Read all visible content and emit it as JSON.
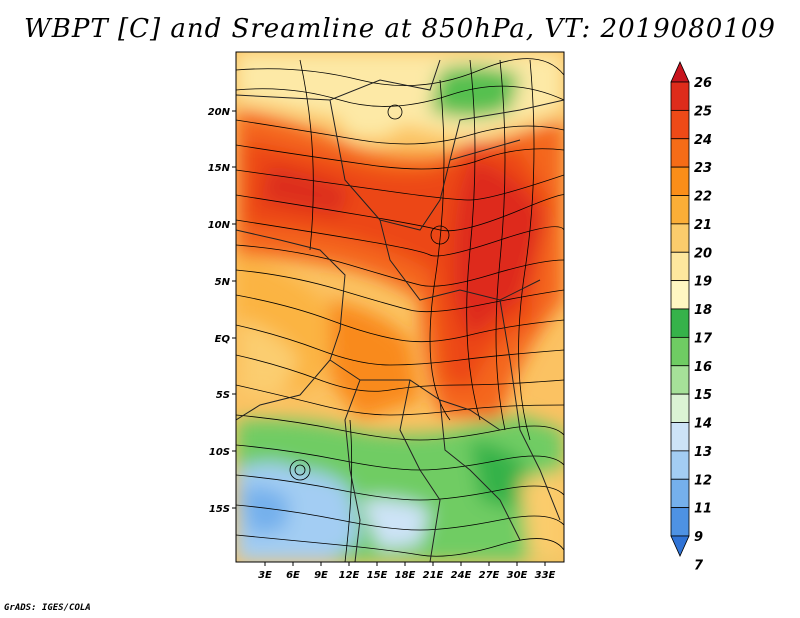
{
  "title": "WBPT [C] and Sreamline at 850hPa, VT: 2019080109",
  "credit": "GrADS: IGES/COLA",
  "map": {
    "variable": "Wet-bulb potential temperature",
    "units": "C",
    "pressure_level": "850hPa",
    "valid_time": "2019080109",
    "lat_ticks": [
      "20N",
      "15N",
      "10N",
      "5N",
      "EQ",
      "5S",
      "10S",
      "15S"
    ],
    "lon_ticks": [
      "3E",
      "6E",
      "9E",
      "12E",
      "15E",
      "18E",
      "21E",
      "24E",
      "27E",
      "30E",
      "33E"
    ]
  },
  "colorbar": {
    "labels": [
      "26",
      "25",
      "24",
      "23",
      "22",
      "21",
      "20",
      "19",
      "18",
      "17",
      "16",
      "15",
      "14",
      "13",
      "12",
      "11",
      "9",
      "7"
    ],
    "colors": [
      "#c8141e",
      "#de2c1b",
      "#ee4a17",
      "#f56c17",
      "#fa8e19",
      "#fbae37",
      "#fbcc6c",
      "#fde79e",
      "#fff7c2",
      "#36b24a",
      "#6fcc63",
      "#a6e199",
      "#dbf3d4",
      "#cde3f7",
      "#a3cdf3",
      "#75b0ec",
      "#4e92e3",
      "#2f73d6"
    ]
  }
}
